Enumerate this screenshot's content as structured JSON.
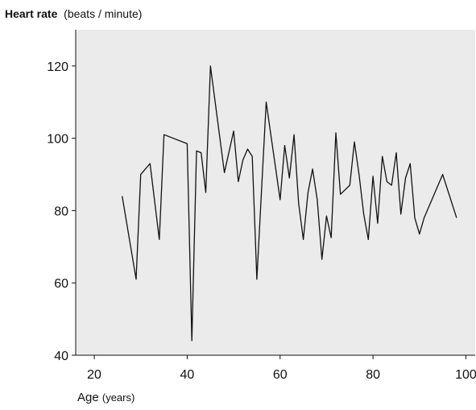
{
  "chart_data": {
    "type": "line",
    "ylabel": "Heart rate",
    "ylabel_unit": "(beats / minute)",
    "xlabel": "Age",
    "xlabel_unit": "(years)",
    "xlim": [
      16,
      102
    ],
    "ylim": [
      40,
      130
    ],
    "xticks": [
      "20",
      "40",
      "60",
      "80",
      "100"
    ],
    "yticks": [
      "40",
      "60",
      "80",
      "100",
      "120"
    ],
    "grid": false,
    "plot_background": "#ebebeb",
    "line_color": "#111111",
    "x": [
      26,
      29,
      30,
      32,
      34,
      35,
      40,
      41,
      42,
      43,
      44,
      45,
      48,
      50,
      51,
      52,
      53,
      54,
      55,
      57,
      60,
      61,
      62,
      63,
      64,
      65,
      66,
      67,
      68,
      69,
      70,
      71,
      72,
      73,
      75,
      76,
      77,
      78,
      79,
      80,
      81,
      82,
      83,
      84,
      85,
      86,
      87,
      88,
      89,
      90,
      91,
      95,
      98
    ],
    "y": [
      84,
      61,
      90,
      93,
      72,
      101,
      98.5,
      44,
      96.5,
      96,
      85,
      120,
      90.5,
      102,
      88,
      94,
      97,
      95,
      61,
      110,
      83,
      98,
      89,
      101,
      82,
      72,
      85,
      91.5,
      83,
      66.5,
      78.5,
      72.5,
      101.5,
      84.5,
      87,
      99,
      90,
      79,
      72,
      89.5,
      76.5,
      95,
      88,
      87,
      96,
      79,
      89,
      93,
      78,
      73.5,
      78,
      90,
      78
    ]
  }
}
